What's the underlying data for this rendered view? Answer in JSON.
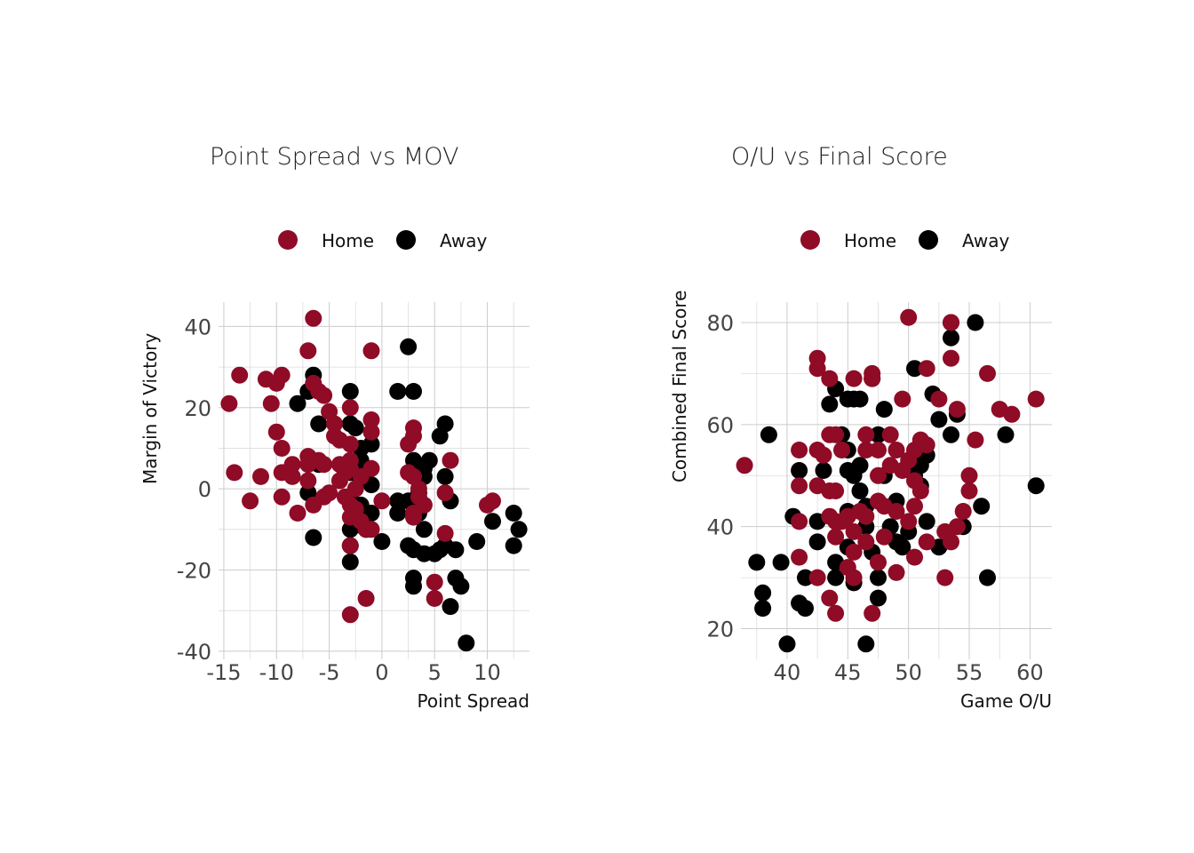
{
  "colors": {
    "home": "#8f0b26",
    "away": "#000000"
  },
  "legend": {
    "home_label": "Home",
    "away_label": "Away"
  },
  "chart_data": [
    {
      "type": "scatter",
      "title": "Point Spread vs MOV",
      "xlabel": "Point Spread",
      "ylabel": "Margin of Victory",
      "xlim": [
        -15.5,
        14
      ],
      "ylim": [
        -42,
        46
      ],
      "xticks": [
        -15,
        -10,
        -5,
        0,
        5,
        10
      ],
      "yticks": [
        -40,
        -20,
        0,
        20,
        40
      ],
      "grid": true,
      "legend_position": "top",
      "series": [
        {
          "name": "Away",
          "color_key": "away",
          "points": [
            [
              -7,
              24
            ],
            [
              -6.5,
              28
            ],
            [
              -8,
              21
            ],
            [
              -6,
              16
            ],
            [
              -6,
              6
            ],
            [
              -6.5,
              -12
            ],
            [
              -7,
              -1
            ],
            [
              -3,
              24
            ],
            [
              -3,
              16
            ],
            [
              -2.5,
              15
            ],
            [
              -2,
              10
            ],
            [
              -1,
              11
            ],
            [
              -2,
              7
            ],
            [
              -3,
              4
            ],
            [
              -2,
              2
            ],
            [
              -1,
              1
            ],
            [
              -2,
              -4
            ],
            [
              -3,
              -2
            ],
            [
              -1,
              -6
            ],
            [
              -3,
              -10
            ],
            [
              -1.5,
              -10
            ],
            [
              0,
              -13
            ],
            [
              -3,
              -18
            ],
            [
              -3,
              -14
            ],
            [
              -2,
              -9
            ],
            [
              1.5,
              24
            ],
            [
              3,
              24
            ],
            [
              2.5,
              35
            ],
            [
              1.5,
              -3
            ],
            [
              1.5,
              -6
            ],
            [
              2.5,
              -3
            ],
            [
              3.5,
              -1
            ],
            [
              3,
              7
            ],
            [
              4,
              5
            ],
            [
              4.5,
              7
            ],
            [
              4,
              3
            ],
            [
              3.5,
              -6
            ],
            [
              4,
              -10
            ],
            [
              3,
              -15
            ],
            [
              2.5,
              -14
            ],
            [
              4,
              -16
            ],
            [
              3,
              -22
            ],
            [
              3,
              -24
            ],
            [
              5,
              -16
            ],
            [
              5.5,
              -15
            ],
            [
              6,
              -14
            ],
            [
              5.5,
              13
            ],
            [
              6,
              16
            ],
            [
              6,
              3
            ],
            [
              6.5,
              -3
            ],
            [
              6.5,
              -29
            ],
            [
              7,
              -15
            ],
            [
              7,
              -22
            ],
            [
              7.5,
              -24
            ],
            [
              8,
              -38
            ],
            [
              9,
              -13
            ],
            [
              10.5,
              -8
            ],
            [
              12.5,
              -6
            ],
            [
              13,
              -10
            ],
            [
              12.5,
              -14
            ]
          ]
        },
        {
          "name": "Home",
          "color_key": "home",
          "points": [
            [
              -14.5,
              21
            ],
            [
              -14,
              4
            ],
            [
              -13.5,
              28
            ],
            [
              -12.5,
              -3
            ],
            [
              -11.5,
              3
            ],
            [
              -11,
              27
            ],
            [
              -10.5,
              21
            ],
            [
              -10,
              26
            ],
            [
              -10,
              14
            ],
            [
              -9.5,
              28
            ],
            [
              -9.5,
              10
            ],
            [
              -9.5,
              4
            ],
            [
              -9.5,
              -2
            ],
            [
              -8.5,
              6
            ],
            [
              -8.5,
              3
            ],
            [
              -8,
              -6
            ],
            [
              -7,
              34
            ],
            [
              -7,
              8
            ],
            [
              -7,
              6
            ],
            [
              -7,
              2
            ],
            [
              -6.5,
              42
            ],
            [
              -6.5,
              -4
            ],
            [
              -6.5,
              26
            ],
            [
              -6,
              24
            ],
            [
              -6,
              7
            ],
            [
              -5.5,
              23
            ],
            [
              -5.5,
              6
            ],
            [
              -5.5,
              -2
            ],
            [
              -5,
              19
            ],
            [
              -5,
              -1
            ],
            [
              -4.5,
              16
            ],
            [
              -4.5,
              13
            ],
            [
              -4,
              12
            ],
            [
              -4,
              6
            ],
            [
              -4,
              2
            ],
            [
              -3.5,
              4
            ],
            [
              -3.5,
              -2
            ],
            [
              -3,
              20
            ],
            [
              -3,
              11
            ],
            [
              -3,
              7
            ],
            [
              -3,
              5
            ],
            [
              -3,
              -4
            ],
            [
              -3,
              -7
            ],
            [
              -3,
              -14
            ],
            [
              -3,
              -31
            ],
            [
              -2.5,
              0
            ],
            [
              -2.5,
              -5
            ],
            [
              -2,
              3
            ],
            [
              -2,
              -8
            ],
            [
              -1.5,
              -27
            ],
            [
              -1.5,
              -10
            ],
            [
              -1,
              34
            ],
            [
              -1,
              17
            ],
            [
              -1,
              14
            ],
            [
              -1,
              5
            ],
            [
              -1,
              -10
            ],
            [
              0,
              -3
            ],
            [
              2.5,
              11
            ],
            [
              2.5,
              4
            ],
            [
              3,
              15
            ],
            [
              3,
              13
            ],
            [
              3,
              3
            ],
            [
              3,
              -6
            ],
            [
              3,
              -7
            ],
            [
              3.5,
              0
            ],
            [
              3.5,
              -2
            ],
            [
              4,
              -4
            ],
            [
              5,
              -23
            ],
            [
              5,
              -27
            ],
            [
              6,
              -1
            ],
            [
              6,
              -11
            ],
            [
              6.5,
              7
            ],
            [
              10,
              -4
            ],
            [
              10.5,
              -3
            ]
          ]
        }
      ]
    },
    {
      "type": "scatter",
      "title": "O/U vs Final Score",
      "xlabel": "Game O/U",
      "ylabel": "Combined Final Score",
      "xlim": [
        36.2,
        61.8
      ],
      "ylim": [
        14,
        84
      ],
      "xticks": [
        40,
        45,
        50,
        55,
        60
      ],
      "yticks": [
        20,
        40,
        60,
        80
      ],
      "grid": true,
      "legend_position": "top",
      "series": [
        {
          "name": "Away",
          "color_key": "away",
          "points": [
            [
              37.5,
              33
            ],
            [
              38,
              27
            ],
            [
              38,
              24
            ],
            [
              38.5,
              58
            ],
            [
              39.5,
              33
            ],
            [
              40,
              17
            ],
            [
              40.5,
              42
            ],
            [
              41,
              51
            ],
            [
              41,
              25
            ],
            [
              41.5,
              30
            ],
            [
              41.5,
              24
            ],
            [
              42.5,
              41
            ],
            [
              42.5,
              37
            ],
            [
              43,
              51
            ],
            [
              43.5,
              64
            ],
            [
              44,
              67
            ],
            [
              44,
              33
            ],
            [
              44,
              30
            ],
            [
              44.5,
              58
            ],
            [
              45,
              65
            ],
            [
              45,
              55
            ],
            [
              45,
              51
            ],
            [
              45,
              43
            ],
            [
              45,
              36
            ],
            [
              45.5,
              65
            ],
            [
              45.5,
              50
            ],
            [
              45.5,
              29
            ],
            [
              46,
              65
            ],
            [
              46,
              52
            ],
            [
              46,
              47
            ],
            [
              46.5,
              17
            ],
            [
              46.5,
              44
            ],
            [
              46.5,
              40
            ],
            [
              47,
              69
            ],
            [
              47,
              35
            ],
            [
              47.5,
              30
            ],
            [
              47.5,
              26
            ],
            [
              47.5,
              58
            ],
            [
              48,
              63
            ],
            [
              48,
              50
            ],
            [
              48.5,
              40
            ],
            [
              49,
              45
            ],
            [
              49,
              37
            ],
            [
              49.5,
              36
            ],
            [
              50,
              39
            ],
            [
              50.5,
              71
            ],
            [
              50.5,
              50
            ],
            [
              51,
              52
            ],
            [
              51,
              48
            ],
            [
              51.5,
              54
            ],
            [
              51.5,
              41
            ],
            [
              52,
              66
            ],
            [
              52.5,
              61
            ],
            [
              52.5,
              36
            ],
            [
              53.5,
              80
            ],
            [
              53.5,
              77
            ],
            [
              53.5,
              58
            ],
            [
              54,
              62
            ],
            [
              54.5,
              40
            ],
            [
              55.5,
              80
            ],
            [
              56,
              44
            ],
            [
              56.5,
              30
            ],
            [
              58,
              58
            ],
            [
              60.5,
              48
            ]
          ]
        },
        {
          "name": "Home",
          "color_key": "home",
          "points": [
            [
              36.5,
              52
            ],
            [
              41,
              55
            ],
            [
              41,
              48
            ],
            [
              41,
              41
            ],
            [
              41,
              34
            ],
            [
              42.5,
              73
            ],
            [
              42.5,
              71
            ],
            [
              42.5,
              55
            ],
            [
              42.5,
              48
            ],
            [
              42.5,
              30
            ],
            [
              43,
              54
            ],
            [
              43.5,
              69
            ],
            [
              43.5,
              58
            ],
            [
              43.5,
              47
            ],
            [
              43.5,
              42
            ],
            [
              43.5,
              26
            ],
            [
              44,
              58
            ],
            [
              44,
              47
            ],
            [
              44,
              41
            ],
            [
              44,
              38
            ],
            [
              44,
              23
            ],
            [
              44.5,
              55
            ],
            [
              44.5,
              41
            ],
            [
              45,
              42
            ],
            [
              45,
              32
            ],
            [
              45.5,
              69
            ],
            [
              45.5,
              39
            ],
            [
              45.5,
              35
            ],
            [
              45.5,
              30
            ],
            [
              46,
              43
            ],
            [
              46.5,
              58
            ],
            [
              46.5,
              55
            ],
            [
              46.5,
              42
            ],
            [
              46.5,
              37
            ],
            [
              47,
              70
            ],
            [
              47,
              69
            ],
            [
              47,
              23
            ],
            [
              47.5,
              55
            ],
            [
              47.5,
              50
            ],
            [
              47.5,
              45
            ],
            [
              47.5,
              33
            ],
            [
              48,
              44
            ],
            [
              48,
              38
            ],
            [
              48.5,
              58
            ],
            [
              48.5,
              52
            ],
            [
              49,
              55
            ],
            [
              49,
              43
            ],
            [
              49,
              31
            ],
            [
              49.5,
              65
            ],
            [
              49.5,
              51
            ],
            [
              50,
              81
            ],
            [
              50,
              53
            ],
            [
              50,
              41
            ],
            [
              50.5,
              55
            ],
            [
              50.5,
              49
            ],
            [
              50.5,
              44
            ],
            [
              50.5,
              34
            ],
            [
              51,
              57
            ],
            [
              51,
              47
            ],
            [
              51.5,
              71
            ],
            [
              51.5,
              56
            ],
            [
              51.5,
              37
            ],
            [
              52.5,
              65
            ],
            [
              53,
              39
            ],
            [
              53,
              30
            ],
            [
              53.5,
              80
            ],
            [
              53.5,
              73
            ],
            [
              53.5,
              37
            ],
            [
              54,
              63
            ],
            [
              54,
              40
            ],
            [
              54.5,
              43
            ],
            [
              55,
              50
            ],
            [
              55,
              47
            ],
            [
              55.5,
              57
            ],
            [
              56.5,
              70
            ],
            [
              57.5,
              63
            ],
            [
              58.5,
              62
            ],
            [
              60.5,
              65
            ]
          ]
        }
      ]
    }
  ]
}
